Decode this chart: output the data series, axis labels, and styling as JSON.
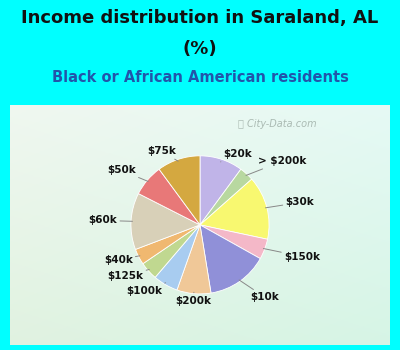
{
  "title_line1": "Income distribution in Saraland, AL",
  "title_line2": "(%)",
  "subtitle": "Black or African American residents",
  "watermark": "ⓘ City-Data.com",
  "bg_cyan": "#00ffff",
  "chart_bg_gradient_top": "#e8f7f0",
  "chart_bg_gradient_bottom": "#d0ede8",
  "labels": [
    "$20k",
    "> $200k",
    "$30k",
    "$150k",
    "$10k",
    "$200k",
    "$100k",
    "$125k",
    "$40k",
    "$60k",
    "$50k",
    "$75k"
  ],
  "values": [
    9.5,
    3.2,
    14.0,
    4.5,
    13.5,
    7.5,
    5.5,
    4.0,
    3.5,
    12.5,
    7.0,
    9.5
  ],
  "colors": [
    "#c0b4e8",
    "#b8d8a0",
    "#f8f870",
    "#f4b8c8",
    "#9090d8",
    "#f0c898",
    "#a8ccf0",
    "#c0d890",
    "#f0b870",
    "#d8d0b8",
    "#e87878",
    "#d4a840"
  ],
  "title_fontsize": 13,
  "subtitle_fontsize": 10.5,
  "title_color": "#111111",
  "subtitle_color": "#2255aa",
  "label_fontsize": 7.5
}
